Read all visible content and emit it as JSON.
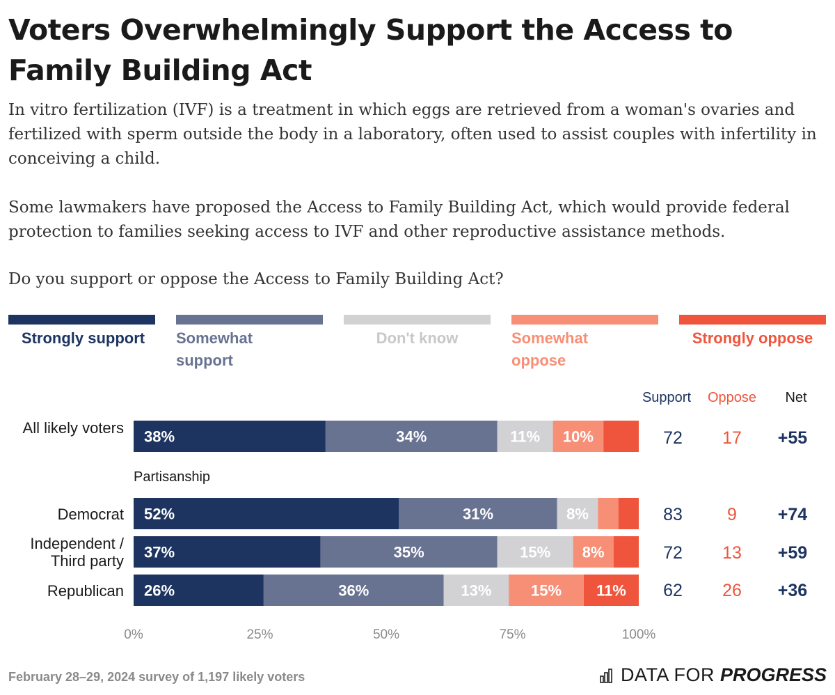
{
  "title": "Voters Overwhelmingly Support the Access to Family Building Act",
  "description": [
    "In vitro fertilization (IVF) is a treatment in which eggs are retrieved from a woman's ovaries and fertilized with sperm outside the body in a laboratory, often used to assist couples with infertility in conceiving a child.",
    "Some lawmakers have proposed the Access to Family Building Act, which would provide federal protection to families seeking access to IVF and other reproductive assistance methods.",
    "Do you support or oppose the Access to Family Building Act?"
  ],
  "legend": [
    {
      "label": "Strongly support",
      "color": "#1d3461"
    },
    {
      "label": "Somewhat support",
      "color": "#687392"
    },
    {
      "label": "Don't know",
      "color": "#d2d2d4"
    },
    {
      "label": "Somewhat oppose",
      "color": "#f78f77"
    },
    {
      "label": "Strongly oppose",
      "color": "#ef553c"
    }
  ],
  "columns": {
    "support": "Support",
    "oppose": "Oppose",
    "net": "Net"
  },
  "colors": {
    "support": "#1d3461",
    "oppose": "#ef553c",
    "net": "#1d3461"
  },
  "section_label": "Partisanship",
  "chart_data": {
    "type": "bar",
    "orientation": "horizontal-stacked",
    "xlim": [
      0,
      100
    ],
    "x_ticks": [
      "0%",
      "25%",
      "50%",
      "75%",
      "100%"
    ],
    "series_names": [
      "Strongly support",
      "Somewhat support",
      "Don't know",
      "Somewhat oppose",
      "Strongly oppose"
    ],
    "rows": [
      {
        "label": "All likely voters",
        "values": [
          38,
          34,
          11,
          10,
          7
        ],
        "value_labels": [
          "38%",
          "34%",
          "11%",
          "10%",
          ""
        ],
        "support": "72",
        "oppose": "17",
        "net": "+55"
      },
      {
        "label": "Democrat",
        "values": [
          52,
          31,
          8,
          4,
          4
        ],
        "value_labels": [
          "52%",
          "31%",
          "8%",
          "",
          ""
        ],
        "support": "83",
        "oppose": "9",
        "net": "+74"
      },
      {
        "label": "Independent / Third party",
        "values": [
          37,
          35,
          15,
          8,
          5
        ],
        "value_labels": [
          "37%",
          "35%",
          "15%",
          "8%",
          ""
        ],
        "support": "72",
        "oppose": "13",
        "net": "+59"
      },
      {
        "label": "Republican",
        "values": [
          26,
          36,
          13,
          15,
          11
        ],
        "value_labels": [
          "26%",
          "36%",
          "13%",
          "15%",
          "11%"
        ],
        "support": "62",
        "oppose": "26",
        "net": "+36"
      }
    ]
  },
  "footer": {
    "note": "February 28–29, 2024 survey of 1,197 likely voters",
    "brand_part1": "DATA FOR",
    "brand_part2": "PROGRESS"
  }
}
